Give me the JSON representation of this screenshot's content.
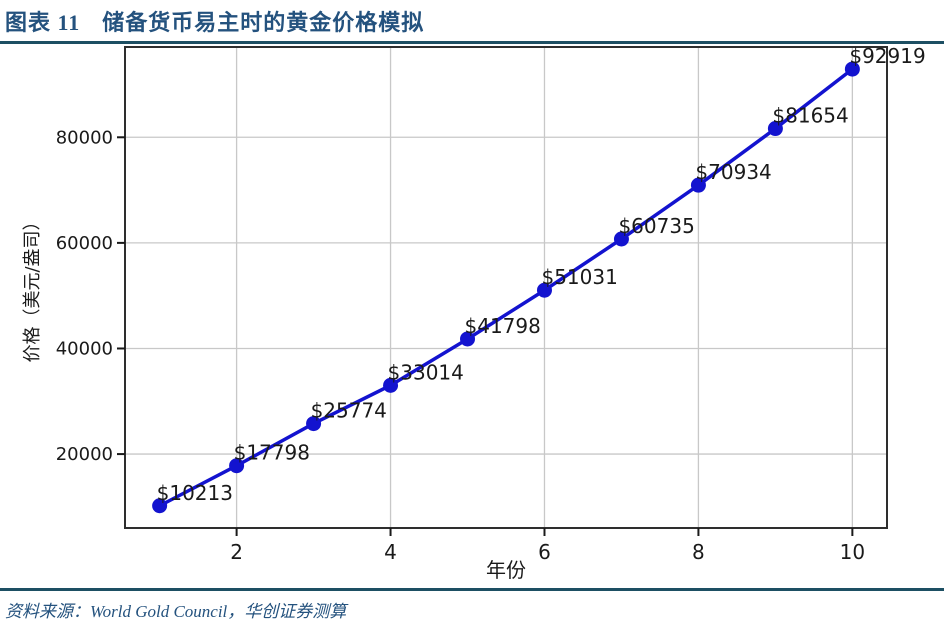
{
  "header": {
    "figure_label": "图表 11",
    "title": "储备货币易主时的黄金价格模拟"
  },
  "chart_data": {
    "type": "line",
    "title": "储备货币易主时的黄金价格模拟",
    "x": [
      1,
      2,
      3,
      4,
      5,
      6,
      7,
      8,
      9,
      10
    ],
    "values": [
      10213,
      17798,
      25774,
      33014,
      41798,
      51031,
      60735,
      70934,
      81654,
      92919
    ],
    "point_labels": [
      "$10213",
      "$17798",
      "$25774",
      "$33014",
      "$41798",
      "$51031",
      "$60735",
      "$70934",
      "$81654",
      "$92919"
    ],
    "xlabel": "年份",
    "ylabel": "价格（美元/盎司）",
    "xticks": [
      2,
      4,
      6,
      8,
      10
    ],
    "xtick_labels": [
      "2",
      "4",
      "6",
      "8",
      "10"
    ],
    "yticks": [
      20000,
      40000,
      60000,
      80000
    ],
    "ytick_labels": [
      "20000",
      "40000",
      "60000",
      "80000"
    ],
    "xlim": [
      0.55,
      10.45
    ],
    "ylim": [
      6000,
      97100
    ],
    "grid": true,
    "legend_position": "none",
    "line_color": "#1313cf",
    "marker": "circle"
  },
  "footer": {
    "source": "资料来源：World Gold Council，华创证券测算"
  },
  "colors": {
    "title_text": "#24527e",
    "divider": "#1d4f63",
    "grid": "#c8c8c8",
    "axis_frame": "#2e2e2e",
    "tick_text": "#1a1a1a",
    "label_text": "#1a1a1a"
  }
}
